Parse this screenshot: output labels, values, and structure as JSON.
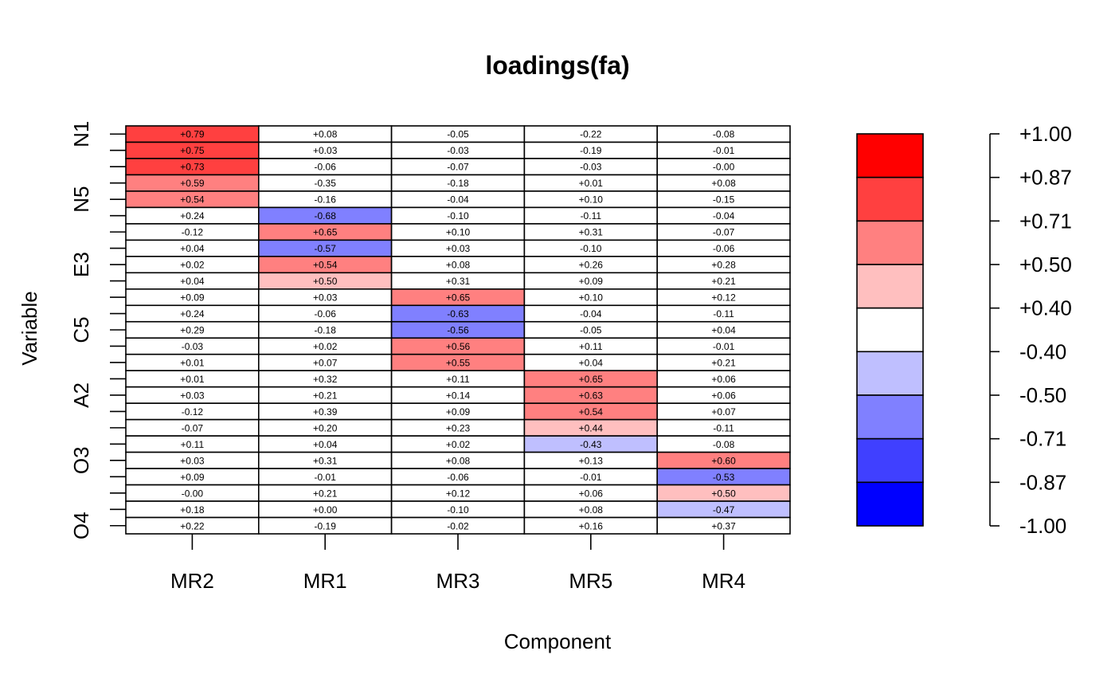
{
  "chart_data": {
    "type": "heatmap",
    "title": "loadings(fa)",
    "xlabel": "Component",
    "ylabel": "Variable",
    "columns": [
      "MR2",
      "MR1",
      "MR3",
      "MR5",
      "MR4"
    ],
    "row_tick_labels": [
      "N1",
      "",
      "",
      "",
      "N5",
      "",
      "",
      "",
      "E3",
      "",
      "",
      "",
      "C5",
      "",
      "",
      "",
      "A2",
      "",
      "",
      "",
      "O3",
      "",
      "",
      "",
      "O4"
    ],
    "values": [
      [
        0.79,
        0.08,
        -0.05,
        -0.22,
        -0.08
      ],
      [
        0.75,
        0.03,
        -0.03,
        -0.19,
        -0.01
      ],
      [
        0.73,
        -0.06,
        -0.07,
        -0.03,
        -0.0
      ],
      [
        0.59,
        -0.35,
        -0.18,
        0.01,
        0.08
      ],
      [
        0.54,
        -0.16,
        -0.04,
        0.1,
        -0.15
      ],
      [
        0.24,
        -0.68,
        -0.1,
        -0.11,
        -0.04
      ],
      [
        -0.12,
        0.65,
        0.1,
        0.31,
        -0.07
      ],
      [
        0.04,
        -0.57,
        0.03,
        -0.1,
        -0.06
      ],
      [
        0.02,
        0.54,
        0.08,
        0.26,
        0.28
      ],
      [
        0.04,
        0.5,
        0.31,
        0.09,
        0.21
      ],
      [
        0.09,
        0.03,
        0.65,
        0.1,
        0.12
      ],
      [
        0.24,
        -0.06,
        -0.63,
        -0.04,
        -0.11
      ],
      [
        0.29,
        -0.18,
        -0.56,
        -0.05,
        0.04
      ],
      [
        -0.03,
        0.02,
        0.56,
        0.11,
        -0.01
      ],
      [
        0.01,
        0.07,
        0.55,
        0.04,
        0.21
      ],
      [
        0.01,
        0.32,
        0.11,
        0.65,
        0.06
      ],
      [
        0.03,
        0.21,
        0.14,
        0.63,
        0.06
      ],
      [
        -0.12,
        0.39,
        0.09,
        0.54,
        0.07
      ],
      [
        -0.07,
        0.2,
        0.23,
        0.44,
        -0.11
      ],
      [
        0.11,
        0.04,
        0.02,
        -0.43,
        -0.08
      ],
      [
        0.03,
        0.31,
        0.08,
        0.13,
        0.6
      ],
      [
        0.09,
        -0.01,
        -0.06,
        -0.01,
        -0.53
      ],
      [
        -0.0,
        0.21,
        0.12,
        0.06,
        0.5
      ],
      [
        0.18,
        0.0,
        -0.1,
        0.08,
        -0.47
      ],
      [
        0.22,
        -0.19,
        -0.02,
        0.16,
        0.37
      ]
    ],
    "value_labels": [
      [
        "+0.79",
        "+0.08",
        "-0.05",
        "-0.22",
        "-0.08"
      ],
      [
        "+0.75",
        "+0.03",
        "-0.03",
        "-0.19",
        "-0.01"
      ],
      [
        "+0.73",
        "-0.06",
        "-0.07",
        "-0.03",
        "-0.00"
      ],
      [
        "+0.59",
        "-0.35",
        "-0.18",
        "+0.01",
        "+0.08"
      ],
      [
        "+0.54",
        "-0.16",
        "-0.04",
        "+0.10",
        "-0.15"
      ],
      [
        "+0.24",
        "-0.68",
        "-0.10",
        "-0.11",
        "-0.04"
      ],
      [
        "-0.12",
        "+0.65",
        "+0.10",
        "+0.31",
        "-0.07"
      ],
      [
        "+0.04",
        "-0.57",
        "+0.03",
        "-0.10",
        "-0.06"
      ],
      [
        "+0.02",
        "+0.54",
        "+0.08",
        "+0.26",
        "+0.28"
      ],
      [
        "+0.04",
        "+0.50",
        "+0.31",
        "+0.09",
        "+0.21"
      ],
      [
        "+0.09",
        "+0.03",
        "+0.65",
        "+0.10",
        "+0.12"
      ],
      [
        "+0.24",
        "-0.06",
        "-0.63",
        "-0.04",
        "-0.11"
      ],
      [
        "+0.29",
        "-0.18",
        "-0.56",
        "-0.05",
        "+0.04"
      ],
      [
        "-0.03",
        "+0.02",
        "+0.56",
        "+0.11",
        "-0.01"
      ],
      [
        "+0.01",
        "+0.07",
        "+0.55",
        "+0.04",
        "+0.21"
      ],
      [
        "+0.01",
        "+0.32",
        "+0.11",
        "+0.65",
        "+0.06"
      ],
      [
        "+0.03",
        "+0.21",
        "+0.14",
        "+0.63",
        "+0.06"
      ],
      [
        "-0.12",
        "+0.39",
        "+0.09",
        "+0.54",
        "+0.07"
      ],
      [
        "-0.07",
        "+0.20",
        "+0.23",
        "+0.44",
        "-0.11"
      ],
      [
        "+0.11",
        "+0.04",
        "+0.02",
        "-0.43",
        "-0.08"
      ],
      [
        "+0.03",
        "+0.31",
        "+0.08",
        "+0.13",
        "+0.60"
      ],
      [
        "+0.09",
        "-0.01",
        "-0.06",
        "-0.01",
        "-0.53"
      ],
      [
        "-0.00",
        "+0.21",
        "+0.12",
        "+0.06",
        "+0.50"
      ],
      [
        "+0.18",
        "+0.00",
        "-0.10",
        "+0.08",
        "-0.47"
      ],
      [
        "+0.22",
        "-0.19",
        "-0.02",
        "+0.16",
        "+0.37"
      ]
    ],
    "legend": {
      "position": "right",
      "breaks": [
        1.0,
        0.87,
        0.71,
        0.5,
        0.4,
        -0.4,
        -0.5,
        -0.71,
        -0.87,
        -1.0
      ],
      "break_labels": [
        "+1.00",
        "+0.87",
        "+0.71",
        "+0.50",
        "+0.40",
        "-0.40",
        "-0.50",
        "-0.71",
        "-0.87",
        "-1.00"
      ],
      "colors": [
        "#FF0000",
        "#FF4040",
        "#FF8080",
        "#FFBFBF",
        "#FFFFFF",
        "#BFBFFF",
        "#8080FF",
        "#4040FF",
        "#0000FF"
      ]
    },
    "grid": false
  }
}
